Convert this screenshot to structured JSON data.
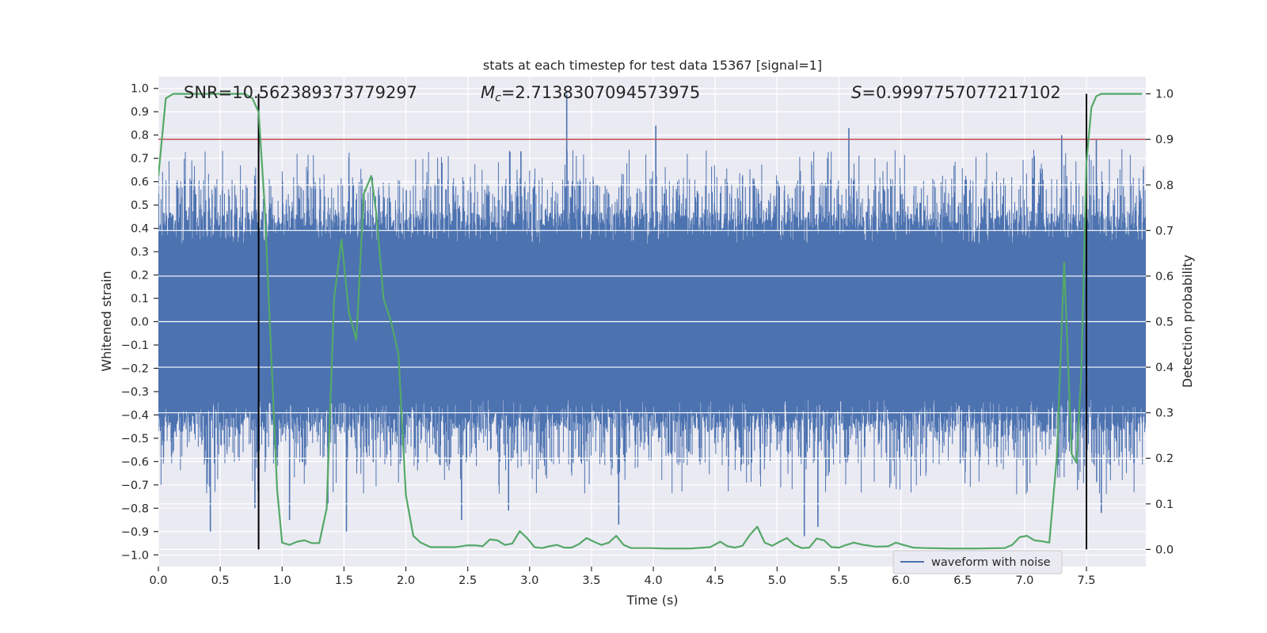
{
  "chart_data": {
    "type": "line",
    "title": "stats at each timestep for test data 15367 [signal=1]",
    "xlabel": "Time (s)",
    "ylabel_left": "Whitened strain",
    "ylabel_right": "Detection probability",
    "xlim": [
      0.0,
      7.98
    ],
    "ylim_left": [
      -1.05,
      1.05
    ],
    "ylim_right": [
      -0.0375,
      1.0375
    ],
    "x_ticks": [
      0.0,
      0.5,
      1.0,
      1.5,
      2.0,
      2.5,
      3.0,
      3.5,
      4.0,
      4.5,
      5.0,
      5.5,
      6.0,
      6.5,
      7.0,
      7.5
    ],
    "x_tick_labels": [
      "0.0",
      "0.5",
      "1.0",
      "1.5",
      "2.0",
      "2.5",
      "3.0",
      "3.5",
      "4.0",
      "4.5",
      "5.0",
      "5.5",
      "6.0",
      "6.5",
      "7.0",
      "7.5"
    ],
    "y_ticks_left": [
      -1.0,
      -0.9,
      -0.8,
      -0.7,
      -0.6,
      -0.5,
      -0.4,
      -0.3,
      -0.2,
      -0.1,
      0.0,
      0.1,
      0.2,
      0.3,
      0.4,
      0.5,
      0.6,
      0.7,
      0.8,
      0.9,
      1.0
    ],
    "y_tick_labels_left": [
      "−1.0",
      "−0.9",
      "−0.8",
      "−0.7",
      "−0.6",
      "−0.5",
      "−0.4",
      "−0.3",
      "−0.2",
      "−0.1",
      "0.0",
      "0.1",
      "0.2",
      "0.3",
      "0.4",
      "0.5",
      "0.6",
      "0.7",
      "0.8",
      "0.9",
      "1.0"
    ],
    "y_ticks_right": [
      0.0,
      0.1,
      0.2,
      0.3,
      0.4,
      0.5,
      0.6,
      0.7,
      0.8,
      0.9,
      1.0
    ],
    "y_tick_labels_right": [
      "0.0",
      "0.1",
      "0.2",
      "0.3",
      "0.4",
      "0.5",
      "0.6",
      "0.7",
      "0.8",
      "0.9",
      "1.0"
    ],
    "annotations": {
      "snr": "SNR=10.562389373779297",
      "mc_symbol": "M",
      "mc_subscript": "c",
      "mc_value": "=2.7138307094573975",
      "s_symbol": "S",
      "s_value": "=0.9997757077217102"
    },
    "threshold_line": {
      "y_right": 0.9,
      "color": "#c44e52"
    },
    "vertical_markers": [
      0.81,
      7.5
    ],
    "legend": [
      {
        "label": "waveform with noise",
        "color": "#4c72b0"
      }
    ],
    "waveform": {
      "name": "waveform with noise",
      "color": "#4c72b0",
      "core_range": [
        -0.33,
        0.33
      ],
      "typical_upper_range": [
        0.35,
        0.62
      ],
      "typical_lower_range": [
        -0.62,
        -0.35
      ],
      "spikes": [
        {
          "x": 3.3,
          "y": 0.99
        },
        {
          "x": 4.02,
          "y": 0.84
        },
        {
          "x": 5.58,
          "y": 0.83
        },
        {
          "x": 7.3,
          "y": 0.8
        },
        {
          "x": 7.58,
          "y": 0.78
        },
        {
          "x": 2.93,
          "y": 0.73
        },
        {
          "x": 0.42,
          "y": -0.9
        },
        {
          "x": 1.52,
          "y": -0.9
        },
        {
          "x": 5.22,
          "y": -0.92
        },
        {
          "x": 5.33,
          "y": -0.88
        },
        {
          "x": 3.72,
          "y": -0.87
        },
        {
          "x": 2.45,
          "y": -0.85
        },
        {
          "x": 1.06,
          "y": -0.85
        },
        {
          "x": 7.62,
          "y": -0.82
        },
        {
          "x": 2.83,
          "y": -0.81
        },
        {
          "x": 0.78,
          "y": -0.8
        },
        {
          "x": 1.37,
          "y": -0.78
        }
      ]
    },
    "detection_probability": {
      "name": "detection probability",
      "color": "#55a868",
      "x": [
        0.0,
        0.06,
        0.12,
        0.2,
        0.3,
        0.4,
        0.5,
        0.6,
        0.7,
        0.76,
        0.81,
        0.86,
        0.9,
        0.96,
        1.0,
        1.06,
        1.12,
        1.18,
        1.24,
        1.3,
        1.36,
        1.42,
        1.48,
        1.54,
        1.6,
        1.66,
        1.72,
        1.76,
        1.82,
        1.88,
        1.94,
        2.0,
        2.06,
        2.12,
        2.2,
        2.3,
        2.4,
        2.5,
        2.56,
        2.62,
        2.68,
        2.74,
        2.8,
        2.86,
        2.92,
        2.98,
        3.04,
        3.1,
        3.16,
        3.22,
        3.28,
        3.34,
        3.4,
        3.46,
        3.52,
        3.58,
        3.64,
        3.7,
        3.76,
        3.82,
        3.88,
        3.96,
        4.1,
        4.3,
        4.46,
        4.54,
        4.6,
        4.66,
        4.72,
        4.78,
        4.84,
        4.9,
        4.96,
        5.02,
        5.08,
        5.14,
        5.2,
        5.26,
        5.32,
        5.38,
        5.44,
        5.5,
        5.56,
        5.62,
        5.7,
        5.8,
        5.9,
        5.96,
        6.02,
        6.1,
        6.2,
        6.4,
        6.6,
        6.84,
        6.9,
        6.96,
        7.02,
        7.08,
        7.14,
        7.2,
        7.26,
        7.32,
        7.38,
        7.42,
        7.46,
        7.5,
        7.54,
        7.58,
        7.62,
        7.7,
        7.8,
        7.95
      ],
      "values": [
        0.82,
        0.99,
        1.0,
        1.0,
        1.0,
        1.0,
        1.0,
        1.0,
        1.0,
        0.99,
        0.96,
        0.75,
        0.5,
        0.13,
        0.015,
        0.01,
        0.017,
        0.02,
        0.014,
        0.014,
        0.09,
        0.55,
        0.68,
        0.52,
        0.46,
        0.78,
        0.82,
        0.74,
        0.55,
        0.5,
        0.43,
        0.12,
        0.03,
        0.015,
        0.005,
        0.005,
        0.005,
        0.009,
        0.009,
        0.007,
        0.022,
        0.02,
        0.01,
        0.013,
        0.04,
        0.025,
        0.005,
        0.003,
        0.007,
        0.01,
        0.004,
        0.004,
        0.012,
        0.025,
        0.017,
        0.01,
        0.015,
        0.03,
        0.01,
        0.003,
        0.003,
        0.003,
        0.002,
        0.002,
        0.005,
        0.017,
        0.007,
        0.004,
        0.008,
        0.032,
        0.05,
        0.015,
        0.008,
        0.017,
        0.025,
        0.01,
        0.003,
        0.004,
        0.024,
        0.02,
        0.005,
        0.004,
        0.01,
        0.015,
        0.01,
        0.006,
        0.007,
        0.015,
        0.01,
        0.004,
        0.003,
        0.002,
        0.002,
        0.003,
        0.01,
        0.027,
        0.03,
        0.02,
        0.018,
        0.015,
        0.2,
        0.63,
        0.21,
        0.19,
        0.4,
        0.85,
        0.97,
        0.995,
        1.0,
        1.0,
        1.0,
        1.0
      ]
    }
  }
}
